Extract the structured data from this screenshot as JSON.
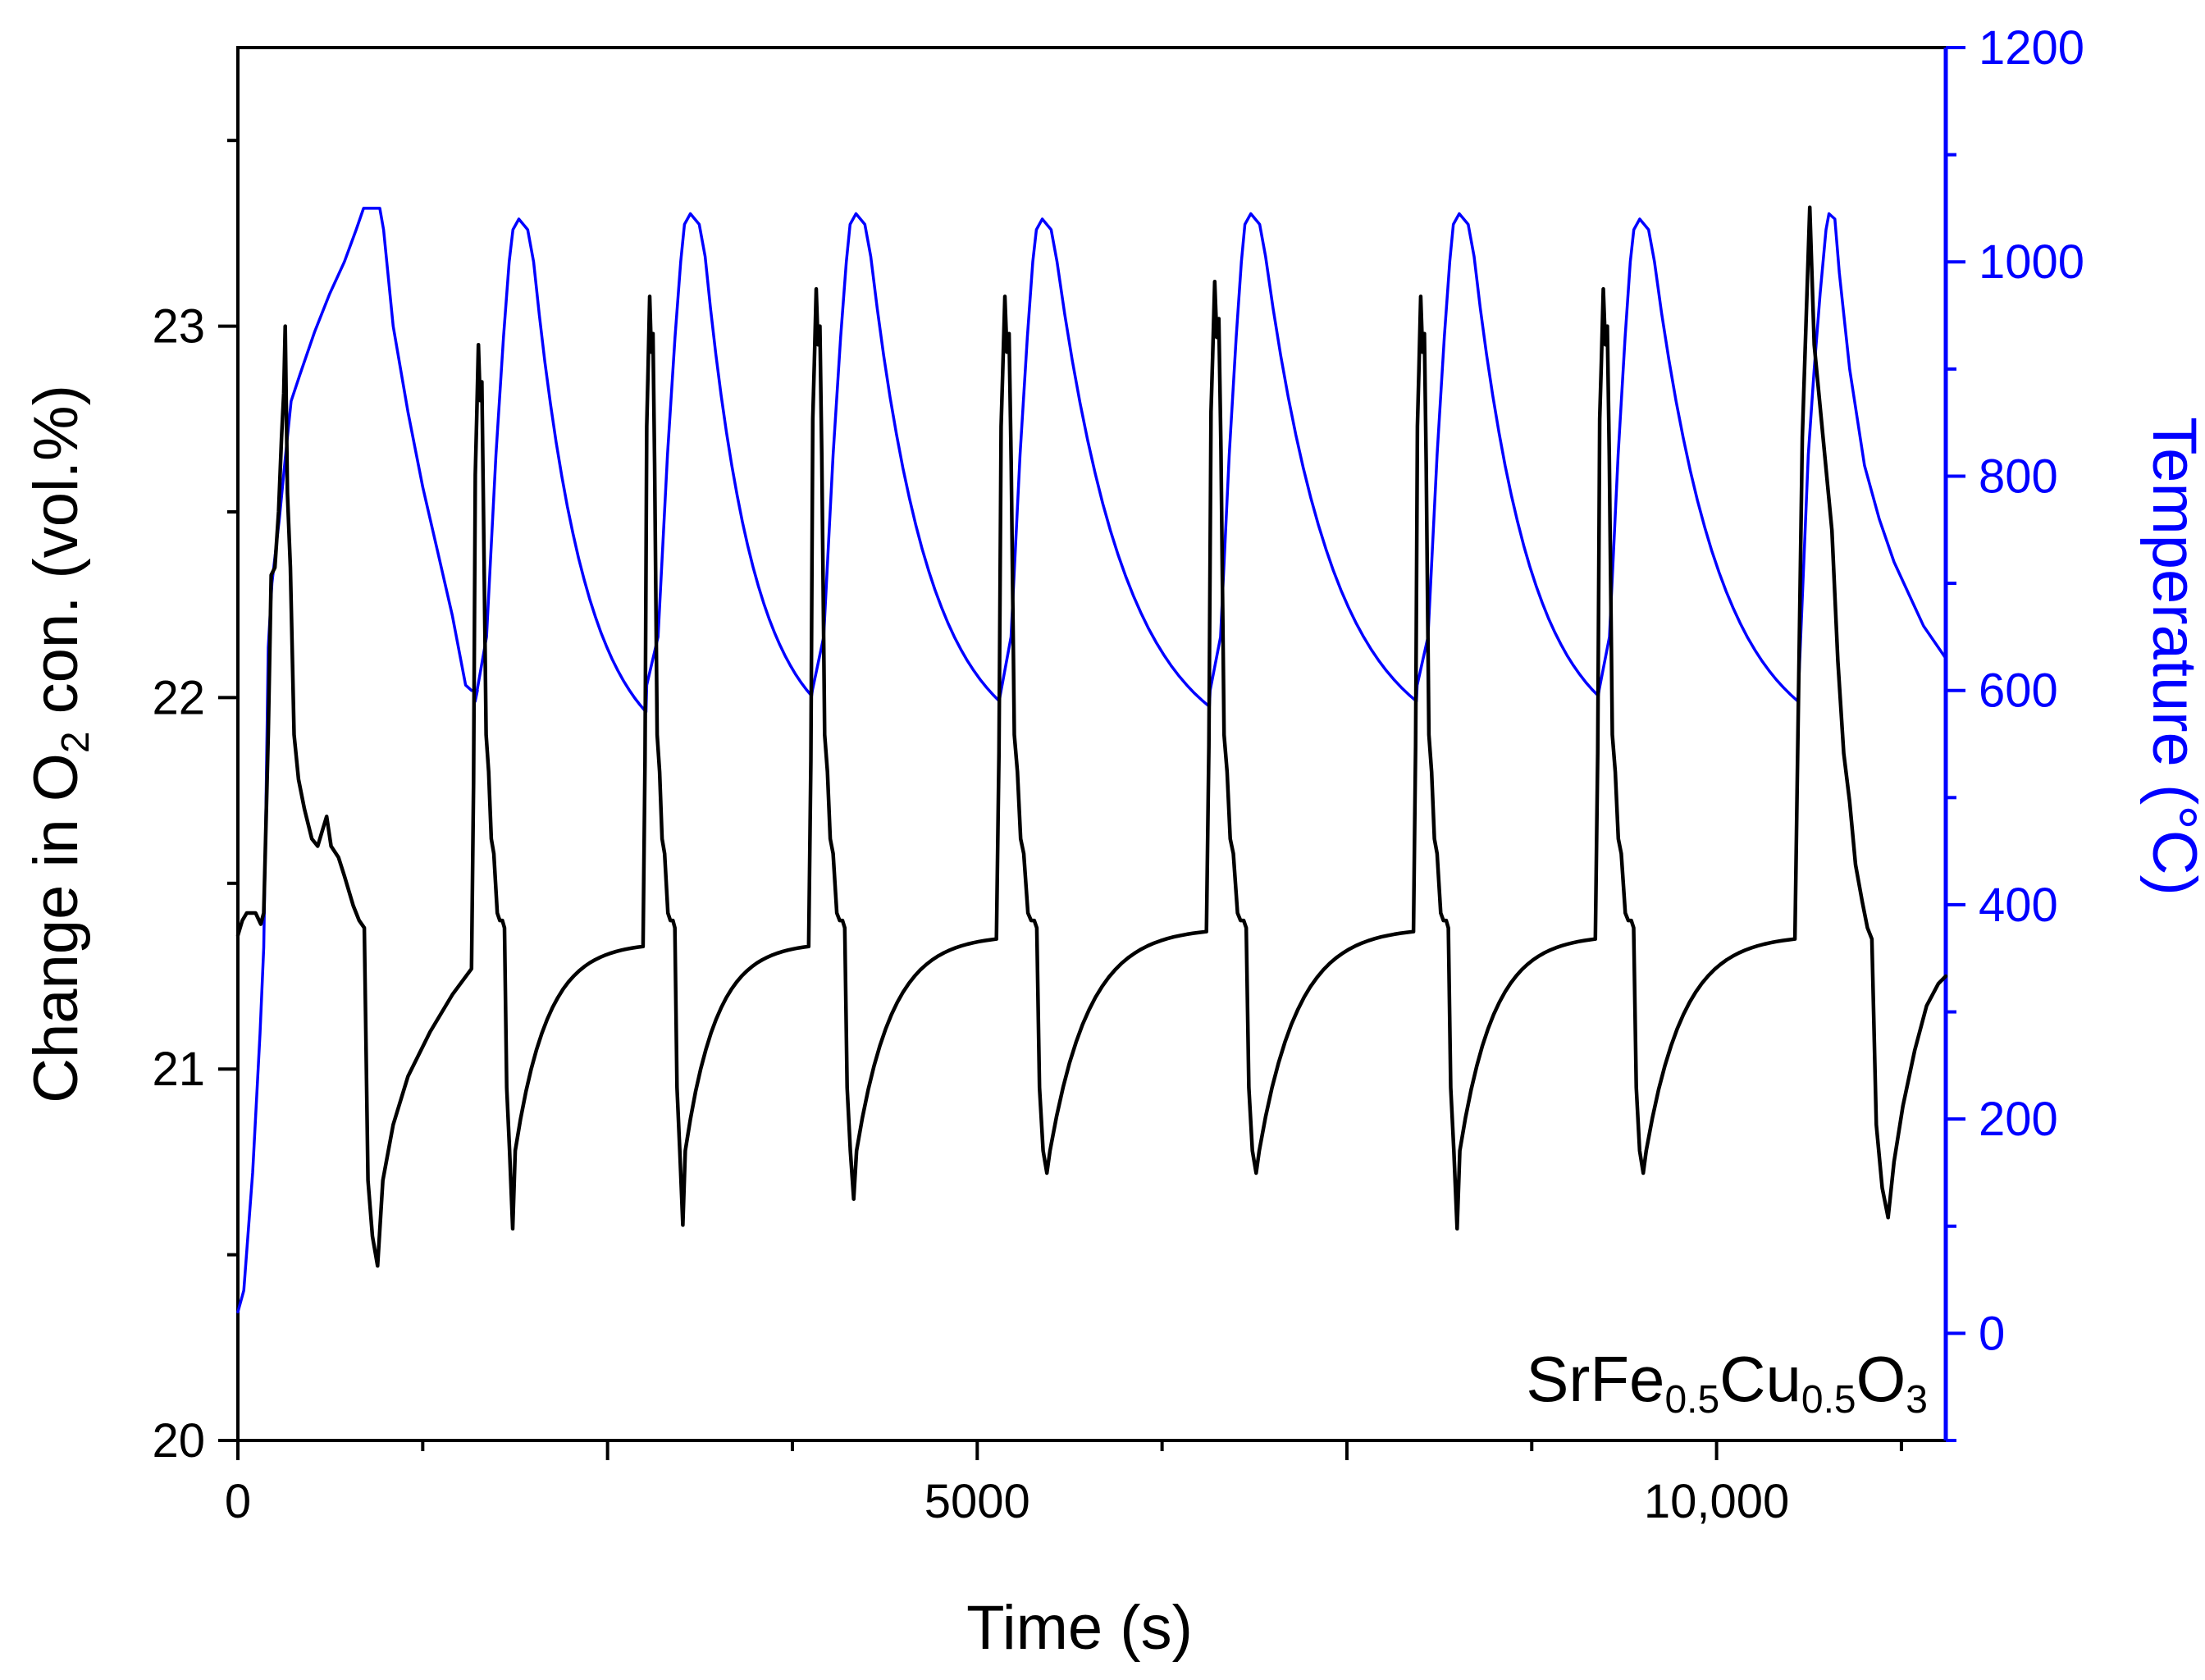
{
  "chart_data": {
    "type": "line",
    "title": "",
    "annotation": {
      "parts": [
        "SrFe",
        "0.5",
        "Cu",
        "0.5",
        "O",
        "3"
      ],
      "position": "bottom-right"
    },
    "x_axis": {
      "label": "Time (s)",
      "range": [
        0,
        11550
      ],
      "ticks": [
        0,
        5000,
        10000
      ],
      "tick_labels": [
        "0",
        "5000",
        "10,000"
      ]
    },
    "y_left": {
      "label_parts": [
        "Change in O",
        "2",
        " con. (vol.%)"
      ],
      "range": [
        20,
        23.75
      ],
      "ticks": [
        20,
        21,
        22,
        23
      ],
      "tick_labels": [
        "20",
        "21",
        "22",
        "23"
      ],
      "color": "#000000"
    },
    "y_right": {
      "label": "Temperature (°C)",
      "range": [
        -100,
        1200
      ],
      "ticks": [
        0,
        200,
        400,
        600,
        800,
        1000,
        1200
      ],
      "tick_labels": [
        "0",
        "200",
        "400",
        "600",
        "800",
        "1000",
        "1200"
      ],
      "color": "#0000ff"
    },
    "series": [
      {
        "name": "O2 concentration",
        "axis": "left",
        "color": "#000000",
        "cycle_starts": [
          1580,
          2740,
          3860,
          5130,
          6550,
          7950,
          9180,
          10530
        ],
        "cycle_peaks": [
          22.95,
          23.08,
          23.1,
          23.08,
          23.12,
          23.08,
          23.1,
          23.32
        ],
        "cycle_minima": [
          20.57,
          20.58,
          20.65,
          20.72,
          20.72,
          20.57,
          20.72,
          20.6
        ],
        "pre_spike_levels": [
          21.27,
          21.33,
          21.33,
          21.35,
          21.37,
          21.37,
          21.35,
          21.35
        ],
        "points": [
          [
            0,
            21.36
          ],
          [
            30,
            21.4
          ],
          [
            60,
            21.42
          ],
          [
            120,
            21.42
          ],
          [
            155,
            21.39
          ],
          [
            175,
            21.42
          ],
          [
            205,
            21.9
          ],
          [
            225,
            22.33
          ],
          [
            250,
            22.35
          ],
          [
            275,
            22.5
          ],
          [
            295,
            22.7
          ],
          [
            310,
            22.82
          ],
          [
            320,
            23.0
          ],
          [
            335,
            22.55
          ],
          [
            355,
            22.35
          ],
          [
            380,
            21.9
          ],
          [
            410,
            21.78
          ],
          [
            450,
            21.7
          ],
          [
            500,
            21.62
          ],
          [
            540,
            21.6
          ],
          [
            570,
            21.64
          ],
          [
            600,
            21.68
          ],
          [
            630,
            21.6
          ],
          [
            680,
            21.57
          ],
          [
            720,
            21.52
          ],
          [
            780,
            21.44
          ],
          [
            820,
            21.4
          ],
          [
            855,
            21.38
          ],
          [
            880,
            20.7
          ],
          [
            910,
            20.55
          ],
          [
            945,
            20.47
          ],
          [
            980,
            20.7
          ],
          [
            1050,
            20.85
          ],
          [
            1150,
            20.98
          ],
          [
            1300,
            21.1
          ],
          [
            1450,
            21.2
          ],
          [
            1580,
            21.27
          ],
          [
            10530,
            21.35
          ],
          [
            10580,
            22.7
          ],
          [
            10630,
            23.32
          ],
          [
            10660,
            22.95
          ],
          [
            10720,
            22.7
          ],
          [
            10780,
            22.45
          ],
          [
            10820,
            22.1
          ],
          [
            10860,
            21.85
          ],
          [
            10900,
            21.72
          ],
          [
            10940,
            21.55
          ],
          [
            10985,
            21.45
          ],
          [
            11020,
            21.38
          ],
          [
            11050,
            21.35
          ],
          [
            11080,
            20.85
          ],
          [
            11120,
            20.68
          ],
          [
            11160,
            20.6
          ],
          [
            11200,
            20.75
          ],
          [
            11260,
            20.9
          ],
          [
            11340,
            21.05
          ],
          [
            11420,
            21.17
          ],
          [
            11500,
            21.23
          ],
          [
            11550,
            21.25
          ]
        ]
      },
      {
        "name": "Temperature",
        "axis": "right",
        "color": "#0000ff",
        "cycle_peak_times": [
          1900,
          3060,
          4180,
          5440,
          6850,
          8260,
          9480,
          10760
        ],
        "cycle_peaks": [
          1040,
          1045,
          1045,
          1040,
          1045,
          1045,
          1040,
          1045
        ],
        "cycle_minima": [
          600,
          580,
          595,
          590,
          585,
          590,
          595,
          590
        ],
        "points": [
          [
            0,
            20
          ],
          [
            40,
            40
          ],
          [
            100,
            150
          ],
          [
            150,
            280
          ],
          [
            175,
            360
          ],
          [
            190,
            490
          ],
          [
            205,
            640
          ],
          [
            230,
            700
          ],
          [
            280,
            760
          ],
          [
            330,
            830
          ],
          [
            360,
            870
          ],
          [
            420,
            895
          ],
          [
            520,
            935
          ],
          [
            620,
            970
          ],
          [
            720,
            1000
          ],
          [
            800,
            1030
          ],
          [
            850,
            1050
          ],
          [
            960,
            1050
          ],
          [
            985,
            1030
          ],
          [
            1050,
            940
          ],
          [
            1150,
            860
          ],
          [
            1250,
            790
          ],
          [
            1350,
            730
          ],
          [
            1450,
            670
          ],
          [
            1540,
            605
          ],
          [
            1580,
            600
          ],
          [
            1620,
            600
          ],
          [
            10560,
            620
          ],
          [
            10620,
            820
          ],
          [
            10660,
            900
          ],
          [
            10700,
            970
          ],
          [
            10740,
            1030
          ],
          [
            10760,
            1045
          ],
          [
            10800,
            1040
          ],
          [
            10830,
            990
          ],
          [
            10900,
            900
          ],
          [
            11000,
            810
          ],
          [
            11100,
            760
          ],
          [
            11200,
            720
          ],
          [
            11300,
            690
          ],
          [
            11400,
            660
          ],
          [
            11550,
            630
          ]
        ]
      }
    ]
  }
}
